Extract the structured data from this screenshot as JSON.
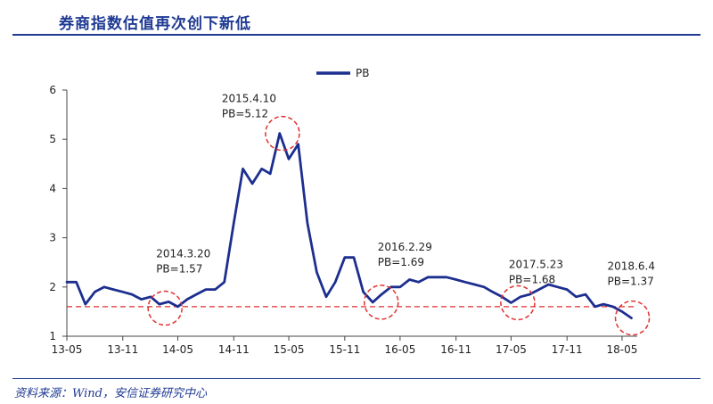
{
  "header": {
    "title": "券商指数估值再次创下新低",
    "accent_color": "#1F3A93",
    "title_color": "#1F3A93",
    "rule_color": "#1F3A93"
  },
  "footer": {
    "source": "资料来源：Wind，安信证券研究中心",
    "source_color": "#1F3A93"
  },
  "chart_data": {
    "type": "line",
    "title": "",
    "xlabel": "",
    "ylabel": "",
    "ylim": [
      1,
      6
    ],
    "yticks": [
      "1",
      "2",
      "3",
      "4",
      "5",
      "6"
    ],
    "xticks": [
      "13-05",
      "13-11",
      "14-05",
      "14-11",
      "15-05",
      "15-11",
      "16-05",
      "16-11",
      "17-05",
      "17-11",
      "18-05"
    ],
    "legend": {
      "entries": [
        "PB"
      ],
      "placement": "top-center"
    },
    "grid": false,
    "line_color": "#1C2F8F",
    "reference_line": {
      "value": 1.6,
      "style": "dashed",
      "color": "#E03030"
    },
    "series": [
      {
        "name": "PB",
        "x": [
          "2013-05-01",
          "2013-06-01",
          "2013-07-01",
          "2013-08-01",
          "2013-09-01",
          "2013-10-01",
          "2013-11-01",
          "2013-12-01",
          "2014-01-01",
          "2014-02-01",
          "2014-03-01",
          "2014-04-01",
          "2014-05-01",
          "2014-06-01",
          "2014-07-01",
          "2014-08-01",
          "2014-09-01",
          "2014-10-01",
          "2014-11-01",
          "2014-12-01",
          "2015-01-01",
          "2015-02-01",
          "2015-03-01",
          "2015-04-01",
          "2015-05-01",
          "2015-06-01",
          "2015-07-01",
          "2015-08-01",
          "2015-09-01",
          "2015-10-01",
          "2015-11-01",
          "2015-12-01",
          "2016-01-01",
          "2016-02-01",
          "2016-03-01",
          "2016-04-01",
          "2016-05-01",
          "2016-06-01",
          "2016-07-01",
          "2016-08-01",
          "2016-09-01",
          "2016-10-01",
          "2016-11-01",
          "2016-12-01",
          "2017-01-01",
          "2017-02-01",
          "2017-03-01",
          "2017-04-01",
          "2017-05-01",
          "2017-06-01",
          "2017-07-01",
          "2017-08-01",
          "2017-09-01",
          "2017-10-01",
          "2017-11-01",
          "2017-12-01",
          "2018-01-01",
          "2018-02-01",
          "2018-03-01",
          "2018-04-01",
          "2018-05-01",
          "2018-06-01"
        ],
        "values": [
          2.1,
          2.1,
          1.65,
          1.9,
          2.0,
          1.95,
          1.9,
          1.85,
          1.75,
          1.8,
          1.65,
          1.7,
          1.6,
          1.75,
          1.85,
          1.95,
          1.95,
          2.1,
          3.3,
          4.4,
          4.1,
          4.4,
          4.3,
          5.12,
          4.6,
          4.9,
          3.3,
          2.3,
          1.8,
          2.1,
          2.6,
          2.6,
          1.9,
          1.69,
          1.85,
          2.0,
          2.0,
          2.15,
          2.1,
          2.2,
          2.2,
          2.2,
          2.15,
          2.1,
          2.05,
          2.0,
          1.9,
          1.8,
          1.68,
          1.8,
          1.85,
          1.95,
          2.05,
          2.0,
          1.95,
          1.8,
          1.85,
          1.6,
          1.65,
          1.6,
          1.5,
          1.37
        ]
      }
    ],
    "annotations": [
      {
        "date": "2014-03-20",
        "label_date": "2014.3.20",
        "label_value": "PB=1.57",
        "value": 1.57
      },
      {
        "date": "2015-04-10",
        "label_date": "2015.4.10",
        "label_value": "PB=5.12",
        "value": 5.12
      },
      {
        "date": "2016-02-29",
        "label_date": "2016.2.29",
        "label_value": "PB=1.69",
        "value": 1.69
      },
      {
        "date": "2017-05-23",
        "label_date": "2017.5.23",
        "label_value": "PB=1.68",
        "value": 1.68
      },
      {
        "date": "2018-06-04",
        "label_date": "2018.6.4",
        "label_value": "PB=1.37",
        "value": 1.37
      }
    ]
  }
}
